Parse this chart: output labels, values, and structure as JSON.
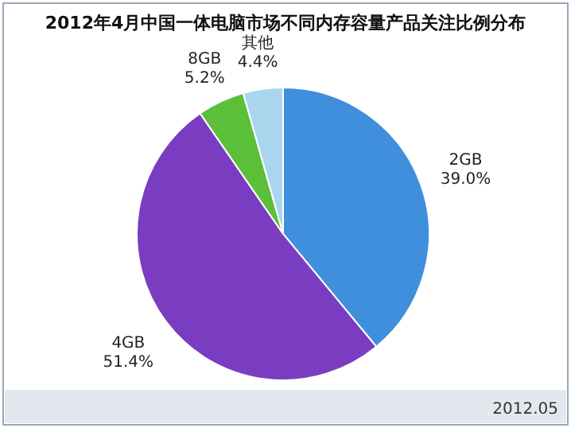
{
  "chart_data": {
    "type": "pie",
    "title": "2012年4月中国一体电脑市场不同内存容量产品关注比例分布",
    "categories": [
      "2GB",
      "4GB",
      "8GB",
      "其他"
    ],
    "values": [
      39.0,
      51.4,
      5.2,
      4.4
    ],
    "value_labels": [
      "39.0%",
      "51.4%",
      "5.2%",
      "4.4%"
    ],
    "colors": [
      "#3f8fdc",
      "#7a3cc0",
      "#5cbf3a",
      "#a9d6ec"
    ],
    "annotations": [
      "2012.05"
    ]
  }
}
